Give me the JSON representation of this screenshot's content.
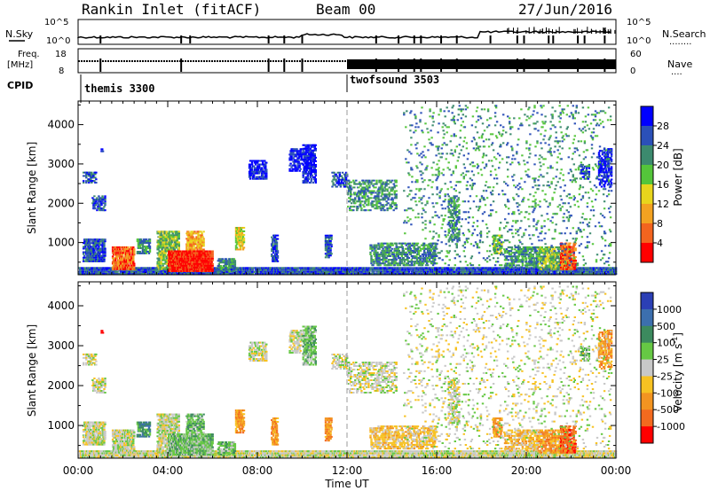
{
  "header": {
    "title": "Rankin Inlet (fitACF)",
    "beam": "Beam 00",
    "date": "27/Jun/2016"
  },
  "status_panels": {
    "nsky": {
      "left_label": "N.Sky",
      "right_label": "N.Search",
      "right_marker": "........",
      "left_ticks": [
        "10^5",
        "10^0"
      ],
      "right_ticks": [
        "10^5",
        "10^0"
      ]
    },
    "freq": {
      "left_label_1": "Freq.",
      "left_label_2": "[MHz]",
      "right_label": "Nave",
      "right_marker": "....",
      "left_ticks": [
        "18",
        "8"
      ],
      "right_ticks": [
        "60",
        "0"
      ]
    },
    "cpid": {
      "label": "CPID",
      "modes": [
        {
          "name": "themis 3300",
          "start_hour": 0
        },
        {
          "name": "twofsound 3503",
          "start_hour": 12
        }
      ]
    }
  },
  "chart_data": [
    {
      "type": "heatmap",
      "name": "power",
      "ylabel": "Slant Range [km]",
      "xlabel": "",
      "yticks": [
        "1000",
        "2000",
        "3000",
        "4000"
      ],
      "ylim": [
        180,
        4600
      ],
      "xlim": [
        0,
        24
      ],
      "colorbar": {
        "label": "Power [dB]",
        "ticks": [
          "4",
          "8",
          "12",
          "16",
          "20",
          "24",
          "28"
        ],
        "colors": [
          "#0000ff",
          "#2b50b8",
          "#3c8a6e",
          "#54c53a",
          "#e8d51c",
          "#f3a221",
          "#f3641f",
          "#ff0000"
        ]
      }
    },
    {
      "type": "heatmap",
      "name": "velocity",
      "ylabel": "Slant Range [km]",
      "xlabel": "Time UT",
      "yticks": [
        "1000",
        "2000",
        "3000",
        "4000"
      ],
      "xticks": [
        "00:00",
        "04:00",
        "08:00",
        "12:00",
        "16:00",
        "20:00",
        "00:00"
      ],
      "ylim": [
        180,
        4600
      ],
      "xlim": [
        0,
        24
      ],
      "colorbar": {
        "label": "Velocity [m s^-1]",
        "ticks": [
          "1000",
          "500",
          "100",
          "25",
          "-25",
          "-100",
          "-500",
          "-1000"
        ],
        "colors": [
          "#2b3fb5",
          "#3c6fae",
          "#3c8a5e",
          "#66c844",
          "#c8c8c8",
          "#f7c222",
          "#f39421",
          "#f36a1f",
          "#ff0000"
        ]
      }
    }
  ]
}
